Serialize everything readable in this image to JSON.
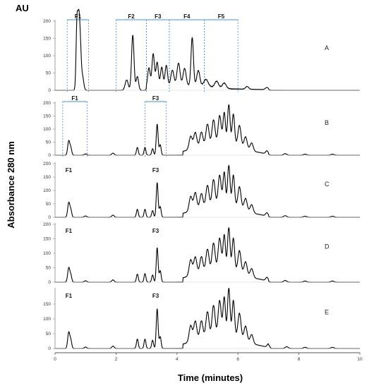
{
  "chart_data": {
    "type": "line",
    "title": "",
    "y_unit_label": "AU",
    "ylabel": "Absorbance 280 nm",
    "xlabel": "Time (minutes)",
    "xlim": [
      0,
      10
    ],
    "x_ticks": [
      "0",
      "2",
      "4",
      "6",
      "8",
      "10"
    ],
    "series_color": "#000000",
    "bracket_color": "#4a90c8",
    "panels": [
      {
        "label": "A",
        "ylim": [
          0,
          200
        ],
        "y_ticks": [
          "0",
          "50",
          "100",
          "150",
          "200"
        ],
        "peaks": [
          [
            0.72,
            195,
            0.03
          ],
          [
            0.78,
            180,
            0.03
          ],
          [
            0.83,
            110,
            0.03
          ],
          [
            0.9,
            40,
            0.04
          ],
          [
            2.35,
            30,
            0.05
          ],
          [
            2.55,
            160,
            0.04
          ],
          [
            2.7,
            40,
            0.04
          ],
          [
            3.08,
            55,
            0.04
          ],
          [
            3.22,
            95,
            0.04
          ],
          [
            3.35,
            70,
            0.04
          ],
          [
            3.5,
            55,
            0.04
          ],
          [
            3.65,
            60,
            0.04
          ],
          [
            3.85,
            45,
            0.05
          ],
          [
            4.05,
            65,
            0.05
          ],
          [
            4.25,
            50,
            0.05
          ],
          [
            4.5,
            140,
            0.04
          ],
          [
            4.7,
            45,
            0.05
          ],
          [
            4.95,
            20,
            0.07
          ],
          [
            5.3,
            18,
            0.06
          ],
          [
            5.55,
            15,
            0.06
          ],
          [
            6.3,
            8,
            0.05
          ],
          [
            6.95,
            6,
            0.05
          ]
        ],
        "baseline": [
          [
            3.0,
            10
          ],
          [
            4.0,
            14
          ],
          [
            4.9,
            12
          ],
          [
            5.8,
            4
          ],
          [
            7.0,
            2
          ]
        ],
        "fractions": [
          {
            "name": "F1",
            "x0": 0.4,
            "x1": 1.1
          },
          {
            "name": "F2",
            "x0": 2.0,
            "x1": 3.0
          },
          {
            "name": "F3",
            "x0": 3.0,
            "x1": 3.75
          },
          {
            "name": "F4",
            "x0": 3.75,
            "x1": 4.9
          },
          {
            "name": "F5",
            "x0": 4.9,
            "x1": 6.0
          }
        ]
      },
      {
        "label": "B",
        "ylim": [
          0,
          200
        ],
        "y_ticks": [
          "0",
          "50",
          "100",
          "150",
          "200"
        ],
        "peaks": [
          [
            0.45,
            55,
            0.035
          ],
          [
            0.52,
            25,
            0.03
          ],
          [
            1.0,
            5,
            0.04
          ],
          [
            1.9,
            8,
            0.04
          ],
          [
            2.7,
            30,
            0.03
          ],
          [
            2.95,
            30,
            0.03
          ],
          [
            3.2,
            25,
            0.03
          ],
          [
            3.35,
            120,
            0.03
          ],
          [
            3.45,
            40,
            0.03
          ],
          [
            4.45,
            50,
            0.05
          ],
          [
            4.6,
            60,
            0.05
          ],
          [
            4.8,
            55,
            0.05
          ],
          [
            5.0,
            80,
            0.05
          ],
          [
            5.2,
            95,
            0.05
          ],
          [
            5.4,
            110,
            0.05
          ],
          [
            5.55,
            120,
            0.04
          ],
          [
            5.7,
            150,
            0.04
          ],
          [
            5.85,
            115,
            0.04
          ],
          [
            6.05,
            80,
            0.05
          ],
          [
            6.25,
            45,
            0.05
          ],
          [
            6.45,
            30,
            0.05
          ],
          [
            6.95,
            12,
            0.04
          ],
          [
            7.55,
            6,
            0.05
          ],
          [
            8.2,
            4,
            0.05
          ],
          [
            9.1,
            4,
            0.05
          ]
        ],
        "baseline": [
          [
            4.2,
            15
          ],
          [
            5.0,
            40
          ],
          [
            5.8,
            45
          ],
          [
            6.5,
            15
          ],
          [
            7.0,
            4
          ]
        ],
        "fractions": [
          {
            "name": "F1",
            "x0": 0.25,
            "x1": 1.05
          },
          {
            "name": "F3",
            "x0": 2.95,
            "x1": 3.65
          }
        ]
      },
      {
        "label": "C",
        "ylim": [
          0,
          200
        ],
        "y_ticks": [
          "0",
          "50",
          "100",
          "150",
          "200"
        ],
        "peaks": [
          [
            0.45,
            55,
            0.035
          ],
          [
            0.52,
            25,
            0.03
          ],
          [
            1.0,
            5,
            0.04
          ],
          [
            1.9,
            8,
            0.04
          ],
          [
            2.7,
            30,
            0.03
          ],
          [
            2.95,
            30,
            0.03
          ],
          [
            3.2,
            25,
            0.03
          ],
          [
            3.35,
            130,
            0.03
          ],
          [
            3.45,
            40,
            0.03
          ],
          [
            4.45,
            55,
            0.05
          ],
          [
            4.6,
            65,
            0.05
          ],
          [
            4.8,
            55,
            0.05
          ],
          [
            5.0,
            80,
            0.05
          ],
          [
            5.2,
            100,
            0.05
          ],
          [
            5.4,
            115,
            0.05
          ],
          [
            5.55,
            125,
            0.04
          ],
          [
            5.7,
            150,
            0.04
          ],
          [
            5.85,
            115,
            0.04
          ],
          [
            6.05,
            80,
            0.05
          ],
          [
            6.25,
            45,
            0.05
          ],
          [
            6.45,
            30,
            0.05
          ],
          [
            6.95,
            12,
            0.04
          ],
          [
            7.55,
            6,
            0.05
          ],
          [
            8.2,
            4,
            0.05
          ],
          [
            9.1,
            4,
            0.05
          ]
        ],
        "baseline": [
          [
            4.2,
            15
          ],
          [
            5.0,
            40
          ],
          [
            5.8,
            45
          ],
          [
            6.5,
            15
          ],
          [
            7.0,
            4
          ]
        ],
        "fractions": [],
        "peak_labels": [
          {
            "name": "F1",
            "x": 0.45
          },
          {
            "name": "F3",
            "x": 3.3
          }
        ]
      },
      {
        "label": "D",
        "ylim": [
          0,
          200
        ],
        "y_ticks": [
          "0",
          "50",
          "100",
          "150",
          "200"
        ],
        "peaks": [
          [
            0.45,
            50,
            0.035
          ],
          [
            0.52,
            22,
            0.03
          ],
          [
            1.0,
            5,
            0.04
          ],
          [
            1.9,
            8,
            0.04
          ],
          [
            2.7,
            28,
            0.03
          ],
          [
            2.95,
            30,
            0.03
          ],
          [
            3.2,
            25,
            0.03
          ],
          [
            3.35,
            120,
            0.03
          ],
          [
            3.45,
            40,
            0.03
          ],
          [
            4.45,
            55,
            0.05
          ],
          [
            4.6,
            60,
            0.05
          ],
          [
            4.8,
            55,
            0.05
          ],
          [
            5.0,
            75,
            0.05
          ],
          [
            5.2,
            95,
            0.05
          ],
          [
            5.4,
            110,
            0.05
          ],
          [
            5.55,
            120,
            0.04
          ],
          [
            5.7,
            145,
            0.04
          ],
          [
            5.85,
            110,
            0.04
          ],
          [
            6.05,
            75,
            0.05
          ],
          [
            6.25,
            45,
            0.05
          ],
          [
            6.45,
            30,
            0.05
          ],
          [
            6.95,
            12,
            0.04
          ],
          [
            7.55,
            6,
            0.05
          ],
          [
            8.2,
            4,
            0.05
          ],
          [
            9.1,
            4,
            0.05
          ]
        ],
        "baseline": [
          [
            4.2,
            15
          ],
          [
            5.0,
            40
          ],
          [
            5.8,
            45
          ],
          [
            6.5,
            15
          ],
          [
            7.0,
            4
          ]
        ],
        "fractions": [],
        "peak_labels": [
          {
            "name": "F1",
            "x": 0.45
          },
          {
            "name": "F3",
            "x": 3.3
          }
        ]
      },
      {
        "label": "E",
        "ylim": [
          0,
          200
        ],
        "y_ticks": [
          "0",
          "50",
          "100",
          "150"
        ],
        "peaks": [
          [
            0.45,
            55,
            0.035
          ],
          [
            0.52,
            25,
            0.03
          ],
          [
            1.0,
            5,
            0.04
          ],
          [
            1.9,
            8,
            0.04
          ],
          [
            2.7,
            32,
            0.03
          ],
          [
            2.95,
            32,
            0.03
          ],
          [
            3.2,
            28,
            0.03
          ],
          [
            3.35,
            135,
            0.03
          ],
          [
            3.45,
            40,
            0.03
          ],
          [
            4.45,
            55,
            0.05
          ],
          [
            4.6,
            65,
            0.05
          ],
          [
            4.8,
            60,
            0.05
          ],
          [
            5.0,
            85,
            0.05
          ],
          [
            5.2,
            105,
            0.05
          ],
          [
            5.4,
            120,
            0.05
          ],
          [
            5.55,
            130,
            0.04
          ],
          [
            5.7,
            160,
            0.04
          ],
          [
            5.85,
            120,
            0.04
          ],
          [
            6.05,
            85,
            0.05
          ],
          [
            6.25,
            50,
            0.05
          ],
          [
            6.45,
            30,
            0.05
          ],
          [
            7.0,
            12,
            0.04
          ],
          [
            7.6,
            6,
            0.05
          ],
          [
            8.2,
            4,
            0.05
          ],
          [
            9.1,
            4,
            0.05
          ]
        ],
        "baseline": [
          [
            4.2,
            15
          ],
          [
            5.0,
            40
          ],
          [
            5.8,
            45
          ],
          [
            6.5,
            15
          ],
          [
            7.0,
            4
          ]
        ],
        "fractions": [],
        "peak_labels": [
          {
            "name": "F1",
            "x": 0.45
          },
          {
            "name": "F3",
            "x": 3.3
          }
        ]
      }
    ]
  }
}
